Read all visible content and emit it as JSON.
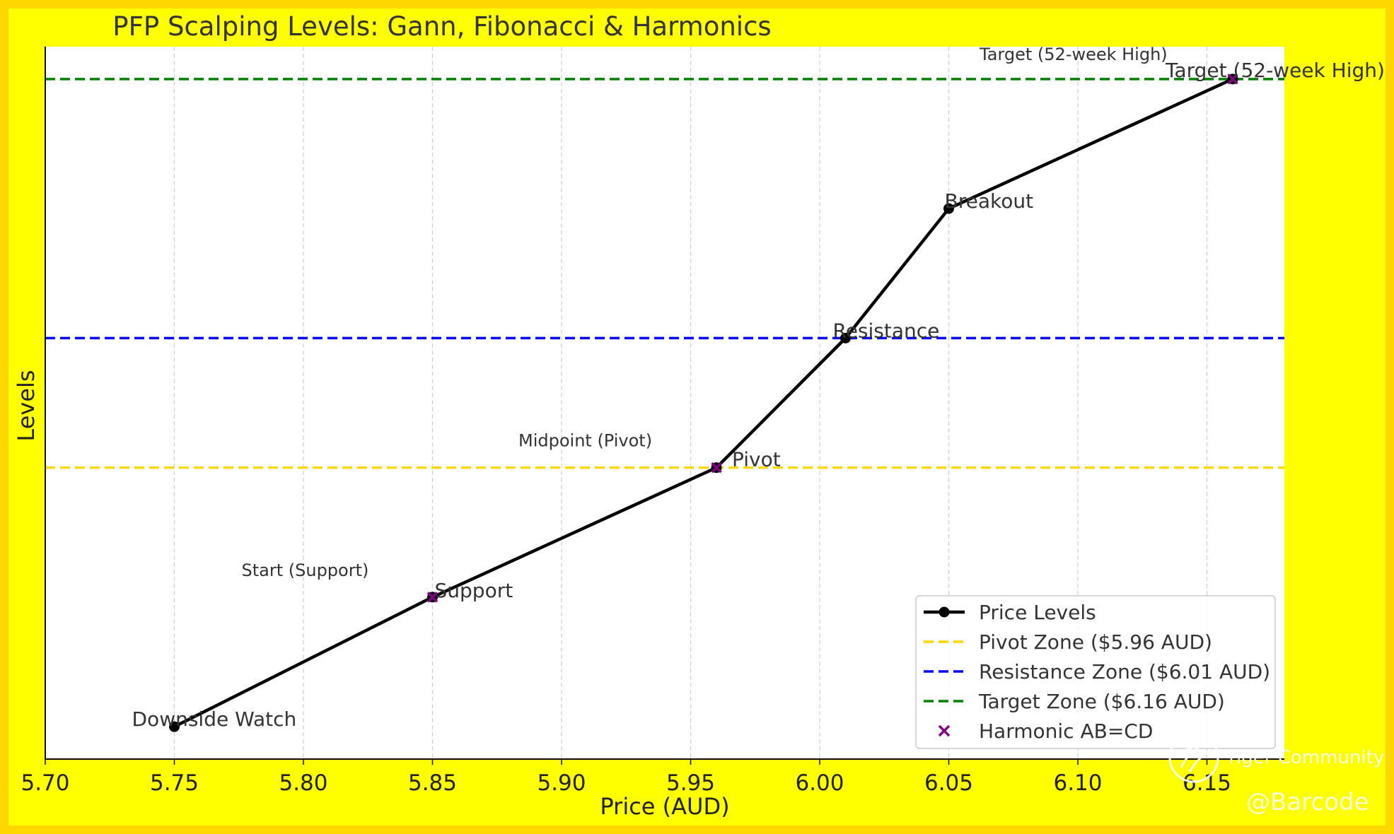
{
  "chart_data": {
    "type": "line",
    "title": "PFP Scalping Levels: Gann, Fibonacci & Harmonics",
    "xlabel": "Price (AUD)",
    "ylabel": "Levels",
    "xlim": [
      5.7,
      6.18
    ],
    "ylim": [
      0.75,
      6.25
    ],
    "x_ticks": [
      "5.70",
      "5.75",
      "5.80",
      "5.85",
      "5.90",
      "5.95",
      "6.00",
      "6.05",
      "6.10",
      "6.15"
    ],
    "x_tick_values": [
      5.7,
      5.75,
      5.8,
      5.85,
      5.9,
      5.95,
      6.0,
      6.05,
      6.1,
      6.15
    ],
    "grid": "x-vertical dashed",
    "legend_position": "lower-right",
    "series": [
      {
        "name": "Price Levels",
        "color": "#000000",
        "points": [
          {
            "x": 5.75,
            "y": 1,
            "label": "Downside Watch"
          },
          {
            "x": 5.85,
            "y": 2,
            "label": "Support"
          },
          {
            "x": 5.96,
            "y": 3,
            "label": "Pivot"
          },
          {
            "x": 6.01,
            "y": 4,
            "label": "Resistance"
          },
          {
            "x": 6.05,
            "y": 5,
            "label": "Breakout"
          },
          {
            "x": 6.16,
            "y": 6,
            "label": "Target (52-week High)"
          }
        ]
      }
    ],
    "harmonic": {
      "name": "Harmonic AB=CD",
      "color": "#800080",
      "points": [
        {
          "x": 5.85,
          "y": 2
        },
        {
          "x": 5.96,
          "y": 3
        },
        {
          "x": 6.16,
          "y": 6
        }
      ],
      "annotations": [
        {
          "text": "Start (Support)",
          "x": 5.85,
          "y": 2
        },
        {
          "text": "Midpoint (Pivot)",
          "x": 5.96,
          "y": 3
        },
        {
          "text": "Target (52-week High)",
          "x": 6.16,
          "y": 6
        }
      ]
    },
    "hlines": [
      {
        "name": "Pivot Zone ($5.96 AUD)",
        "y": 3,
        "color": "#FFD700"
      },
      {
        "name": "Resistance Zone ($6.01 AUD)",
        "y": 4,
        "color": "#0000FF"
      },
      {
        "name": "Target Zone ($6.16 AUD)",
        "y": 6,
        "color": "#008000"
      }
    ]
  },
  "colors": {
    "background": "#FFFF00",
    "border": "#FFD700",
    "plot_area": "#FFFFFF"
  },
  "watermark": {
    "brand": "Tiger Community",
    "handle": "@Barcode",
    "icon": "tiger-community-icon"
  }
}
